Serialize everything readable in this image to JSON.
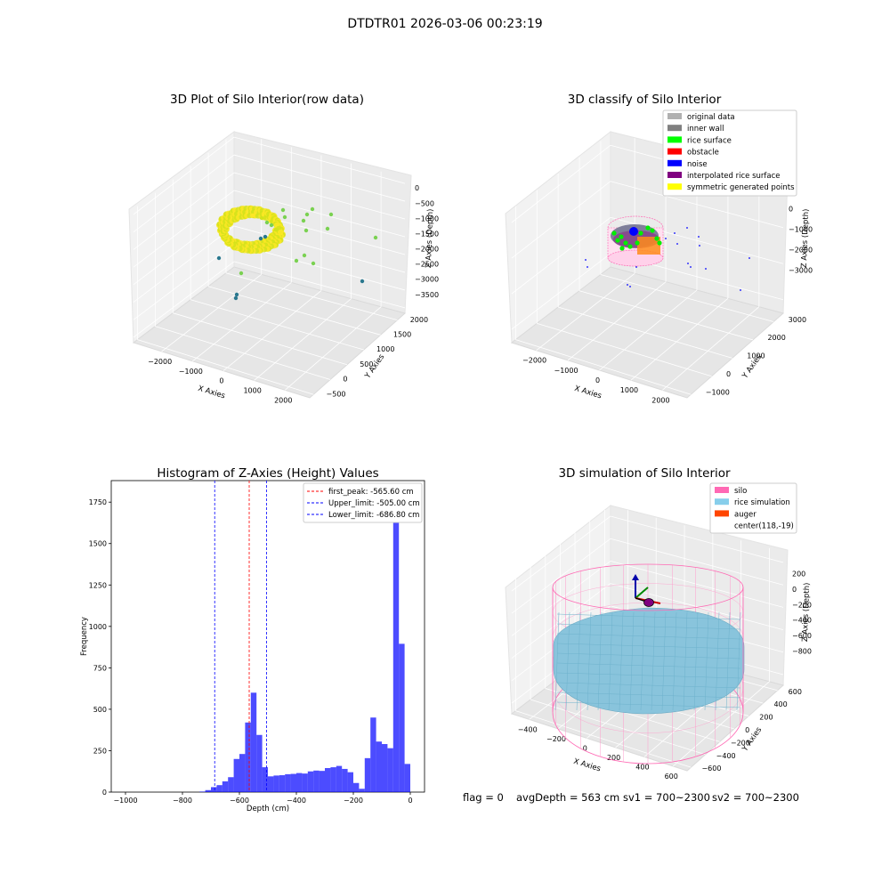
{
  "figure": {
    "suptitle": "DTDTR01 2026-03-06 00:23:19",
    "footer": {
      "flag": "flag = 0",
      "avg_depth": "avgDepth = 563 cm",
      "sv1": "sv1 = 700~2300",
      "sv2": "sv2 = 700~2300"
    }
  },
  "chart_data": [
    {
      "type": "scatter",
      "projection": "3d",
      "title": "3D Plot of Silo Interior(row data)",
      "xlabel": "X Axies",
      "ylabel": "Y Axies",
      "zlabel": "Z Axies (Depth)",
      "x_ticks": [
        "−2000",
        "−1000",
        "0",
        "1000",
        "2000"
      ],
      "y_ticks": [
        "−500",
        "0",
        "500",
        "1000",
        "1500",
        "2000"
      ],
      "z_ticks": [
        "0",
        "−500",
        "−1000",
        "−1500",
        "−2000",
        "−2500",
        "−3000",
        "−3500"
      ],
      "colormap": [
        "#2a788e",
        "#7ad151",
        "#d2e21b",
        "#fde725"
      ]
    },
    {
      "type": "scatter",
      "projection": "3d",
      "title": "3D classify of Silo Interior",
      "xlabel": "X Axies",
      "ylabel": "Y Axies",
      "zlabel": "Z Axies (Depth)",
      "x_ticks": [
        "−2000",
        "−1000",
        "0",
        "1000",
        "2000"
      ],
      "y_ticks": [
        "−1000",
        "0",
        "1000",
        "2000",
        "3000"
      ],
      "z_ticks": [
        "0",
        "−1000",
        "−2000",
        "−3000"
      ],
      "legend_position": "top-right",
      "legend": [
        {
          "name": "original data",
          "color": "#b0b0b0"
        },
        {
          "name": "inner wall",
          "color": "#808080"
        },
        {
          "name": "rice surface",
          "color": "#00ff00"
        },
        {
          "name": "obstacle",
          "color": "#ff0000"
        },
        {
          "name": "noise",
          "color": "#0000ff"
        },
        {
          "name": "interpolated rice surface",
          "color": "#800080"
        },
        {
          "name": "symmetric generated points",
          "color": "#ffff00"
        }
      ]
    },
    {
      "type": "bar",
      "title": "Histogram of Z-Axies (Height) Values",
      "xlabel": "Depth (cm)",
      "ylabel": "Frequency",
      "xlim": [
        -1050,
        50
      ],
      "ylim": [
        0,
        1880
      ],
      "x_ticks": [
        -1000,
        -800,
        -600,
        -400,
        -200,
        0
      ],
      "y_ticks": [
        0,
        250,
        500,
        750,
        1000,
        1250,
        1500,
        1750
      ],
      "bin_width": 20,
      "bar_color": "#0000ff",
      "bins": [
        [
          -740,
          3
        ],
        [
          -720,
          12
        ],
        [
          -700,
          30
        ],
        [
          -680,
          42
        ],
        [
          -660,
          65
        ],
        [
          -640,
          90
        ],
        [
          -620,
          200
        ],
        [
          -600,
          230
        ],
        [
          -580,
          420
        ],
        [
          -560,
          600
        ],
        [
          -540,
          345
        ],
        [
          -520,
          150
        ],
        [
          -500,
          95
        ],
        [
          -480,
          100
        ],
        [
          -460,
          102
        ],
        [
          -440,
          108
        ],
        [
          -420,
          110
        ],
        [
          -400,
          115
        ],
        [
          -380,
          112
        ],
        [
          -360,
          125
        ],
        [
          -340,
          130
        ],
        [
          -320,
          128
        ],
        [
          -300,
          145
        ],
        [
          -280,
          150
        ],
        [
          -260,
          158
        ],
        [
          -240,
          140
        ],
        [
          -220,
          120
        ],
        [
          -200,
          55
        ],
        [
          -180,
          20
        ],
        [
          -160,
          205
        ],
        [
          -140,
          450
        ],
        [
          -120,
          305
        ],
        [
          -100,
          290
        ],
        [
          -80,
          265
        ],
        [
          -60,
          1780
        ],
        [
          -40,
          895
        ],
        [
          -20,
          170
        ]
      ],
      "vlines": [
        {
          "name": "first_peak: -565.60 cm",
          "x": -565.6,
          "color": "#ff0000"
        },
        {
          "name": "Upper_limit: -505.00 cm",
          "x": -505.0,
          "color": "#0000ff"
        },
        {
          "name": "Lower_limit: -686.80 cm",
          "x": -686.8,
          "color": "#0000ff"
        }
      ],
      "legend_position": "top-right"
    },
    {
      "type": "surface",
      "projection": "3d",
      "title": "3D simulation of Silo Interior",
      "xlabel": "X Axies",
      "ylabel": "Y Axies",
      "zlabel": "Z Axies (Depth)",
      "x_ticks": [
        "−400",
        "−200",
        "0",
        "200",
        "400",
        "600"
      ],
      "y_ticks": [
        "−600",
        "−400",
        "−200",
        "0",
        "200",
        "400",
        "600"
      ],
      "z_ticks": [
        "200",
        "0",
        "−200",
        "−400",
        "−600",
        "−800"
      ],
      "legend_position": "top-right",
      "legend": [
        {
          "name": "silo",
          "color": "#ff69b4"
        },
        {
          "name": "rice simulation",
          "color": "#87ceeb"
        },
        {
          "name": "auger",
          "color": "#ff4500"
        },
        {
          "name": "center(118,-19)",
          "color": ""
        }
      ]
    }
  ]
}
